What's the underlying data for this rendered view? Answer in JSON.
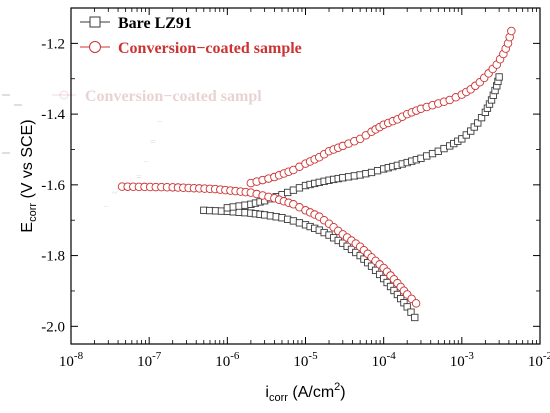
{
  "chart_data": {
    "type": "line",
    "xscale": "log",
    "xlim": [
      1e-08,
      0.01
    ],
    "ylim": [
      -2.05,
      -1.1
    ],
    "x_ticks": [
      {
        "value": 1e-08,
        "base": "10",
        "exp": "-8"
      },
      {
        "value": 1e-07,
        "base": "10",
        "exp": "-7"
      },
      {
        "value": 1e-06,
        "base": "10",
        "exp": "-6"
      },
      {
        "value": 1e-05,
        "base": "10",
        "exp": "-5"
      },
      {
        "value": 0.0001,
        "base": "10",
        "exp": "-4"
      },
      {
        "value": 0.001,
        "base": "10",
        "exp": "-3"
      },
      {
        "value": 0.01,
        "base": "10",
        "exp": "-2"
      }
    ],
    "y_ticks": [
      {
        "value": -2.0,
        "label": "-2.0"
      },
      {
        "value": -1.8,
        "label": "-1.8"
      },
      {
        "value": -1.6,
        "label": "-1.6"
      },
      {
        "value": -1.4,
        "label": "-1.4"
      },
      {
        "value": -1.2,
        "label": "-1.2"
      }
    ],
    "xlabel": {
      "main": "i",
      "sub": "corr",
      "rest": " (A/cm",
      "sup": "2",
      "end": ")"
    },
    "ylabel": {
      "main": "E",
      "sub": "corr",
      "rest": " (V vs SCE)"
    },
    "legend_position": "top-left",
    "grid": false,
    "series": [
      {
        "name": "Bare LZ91",
        "color": "#3a3a3a",
        "marker": "square",
        "branches": [
          {
            "x": [
              5e-07,
              1e-06,
              2e-06,
              3e-06,
              5e-06,
              7e-06,
              1e-05,
              1.5e-05,
              2e-05,
              3e-05,
              5e-05,
              7e-05,
              0.0001,
              0.00015,
              0.0002,
              0.00025
            ],
            "y": [
              -1.672,
              -1.675,
              -1.68,
              -1.685,
              -1.693,
              -1.702,
              -1.713,
              -1.728,
              -1.742,
              -1.765,
              -1.8,
              -1.83,
              -1.865,
              -1.91,
              -1.945,
              -1.975
            ]
          },
          {
            "x": [
              1e-06,
              2e-06,
              3e-06,
              5e-06,
              7e-06,
              1e-05,
              1.5e-05,
              2e-05,
              3e-05,
              5e-05,
              7e-05,
              0.0001,
              0.00015,
              0.0002,
              0.0003,
              0.0005,
              0.0007,
              0.001,
              0.0013,
              0.0016,
              0.002,
              0.0024,
              0.0028,
              0.003
            ],
            "y": [
              -1.665,
              -1.655,
              -1.645,
              -1.628,
              -1.615,
              -1.602,
              -1.593,
              -1.587,
              -1.58,
              -1.572,
              -1.565,
              -1.555,
              -1.545,
              -1.537,
              -1.525,
              -1.505,
              -1.49,
              -1.47,
              -1.448,
              -1.425,
              -1.395,
              -1.36,
              -1.32,
              -1.295
            ]
          }
        ]
      },
      {
        "name": "Conversion−coated sample",
        "color": "#cc3333",
        "marker": "circle",
        "branches": [
          {
            "x": [
              4.5e-08,
              2e-07,
              7e-07,
              2e-06,
              4e-06,
              7e-06,
              1e-05,
              1.5e-05,
              2e-05,
              3e-05,
              5e-05,
              7e-05,
              0.0001,
              0.00015,
              0.0002,
              0.00026
            ],
            "y": [
              -1.605,
              -1.607,
              -1.612,
              -1.622,
              -1.638,
              -1.655,
              -1.672,
              -1.69,
              -1.71,
              -1.74,
              -1.775,
              -1.805,
              -1.835,
              -1.878,
              -1.91,
              -1.935
            ]
          },
          {
            "x": [
              2e-06,
              4e-06,
              7e-06,
              1e-05,
              1.5e-05,
              2e-05,
              3e-05,
              5e-05,
              7e-05,
              0.0001,
              0.00015,
              0.0002,
              0.0003,
              0.0005,
              0.0007,
              0.001,
              0.0013,
              0.0017,
              0.0022,
              0.0028,
              0.0034,
              0.0039,
              0.0043
            ],
            "y": [
              -1.595,
              -1.578,
              -1.558,
              -1.54,
              -1.522,
              -1.505,
              -1.49,
              -1.47,
              -1.45,
              -1.43,
              -1.415,
              -1.4,
              -1.385,
              -1.37,
              -1.36,
              -1.345,
              -1.33,
              -1.31,
              -1.285,
              -1.26,
              -1.23,
              -1.2,
              -1.165
            ]
          }
        ]
      }
    ],
    "ghost_overlay": {
      "legend_text": "Conversion−coated sampl",
      "marks": [
        "−",
        "=",
        "−",
        "=",
        "=",
        "~",
        "−"
      ]
    }
  }
}
